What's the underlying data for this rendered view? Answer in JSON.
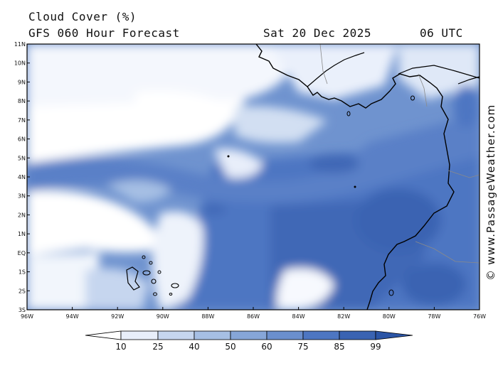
{
  "header": {
    "title": "Cloud Cover (%)",
    "subtitle": "GFS 060 Hour Forecast",
    "date": "Sat 20 Dec 2025",
    "time": "06 UTC"
  },
  "credit": "© www.PassageWeather.com",
  "map": {
    "lat_labels": [
      "11N",
      "10N",
      "9N",
      "8N",
      "7N",
      "6N",
      "5N",
      "4N",
      "3N",
      "2N",
      "1N",
      "EQ",
      "1S",
      "2S",
      "3S"
    ],
    "lon_labels": [
      "96W",
      "94W",
      "92W",
      "90W",
      "88W",
      "86W",
      "84W",
      "82W",
      "80W",
      "78W",
      "76W"
    ],
    "lat_range": [
      -3,
      11
    ],
    "lon_range": [
      -96,
      -76
    ]
  },
  "colorbar": {
    "ticks": [
      "10",
      "25",
      "40",
      "50",
      "60",
      "75",
      "85",
      "99"
    ],
    "colors": [
      "#ffffff",
      "#e8eefa",
      "#c6d6ef",
      "#a6bfe4",
      "#86a6d8",
      "#6b8fcd",
      "#4d76c2",
      "#3a63b2",
      "#2b55a6"
    ]
  },
  "cloud_field": {
    "note_levels": "low=white, high=dark blue"
  }
}
